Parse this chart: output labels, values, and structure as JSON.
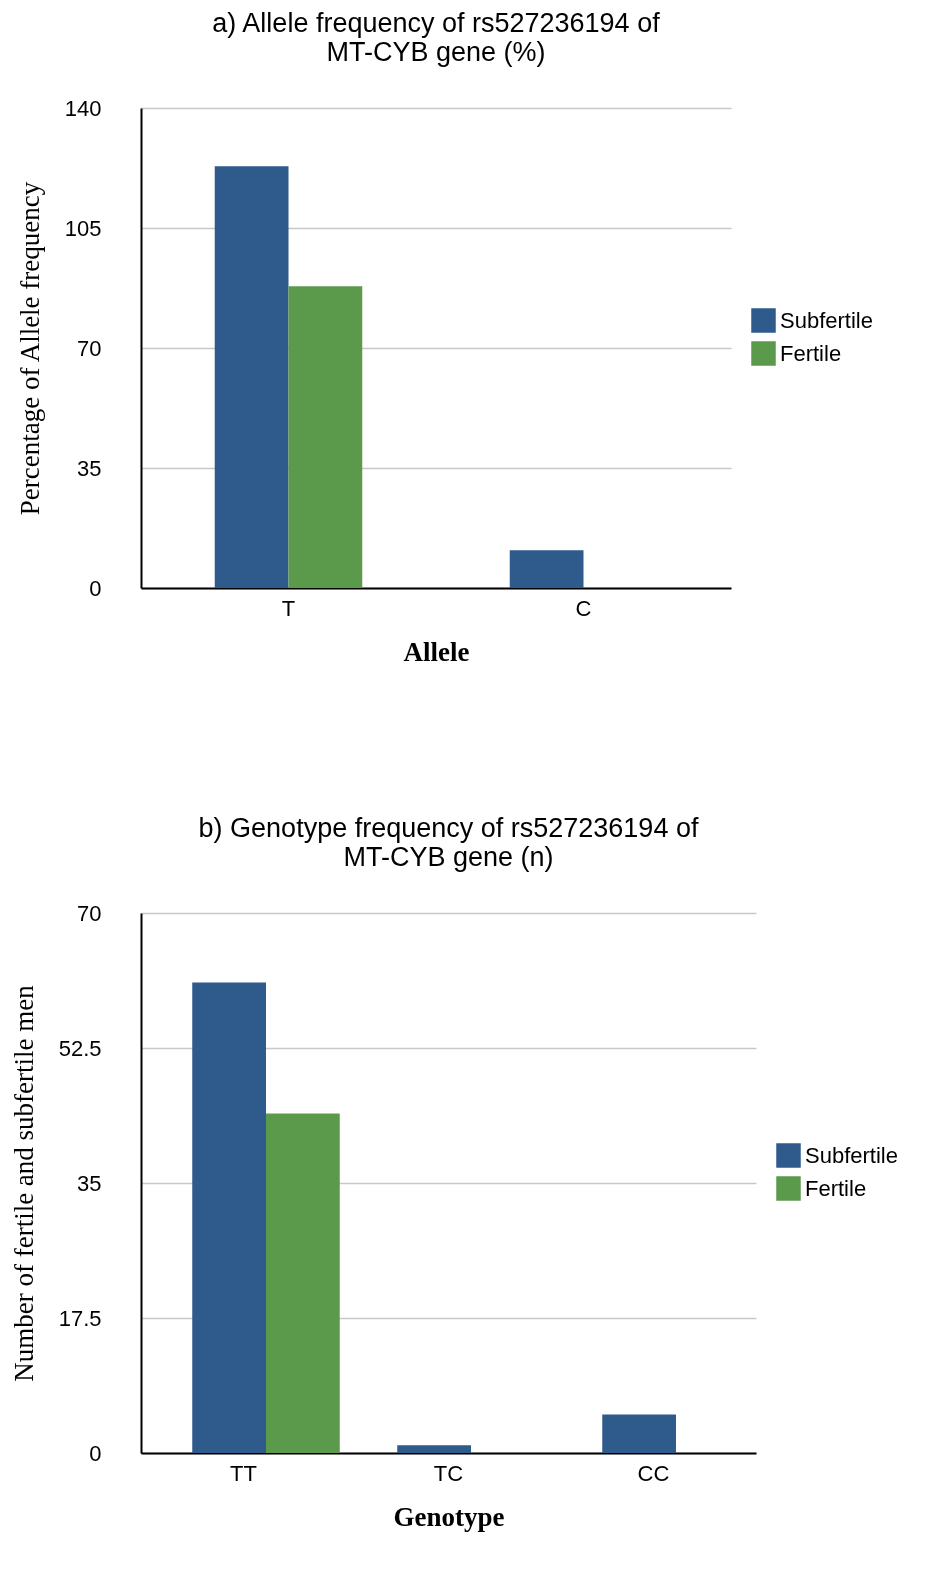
{
  "chart_data": [
    {
      "type": "bar",
      "title": "a) Allele frequency of rs527236194 of MT-CYB gene (%)",
      "xlabel": "Allele",
      "ylabel": "Percentage  of Allele frequency",
      "categories": [
        "T",
        "C"
      ],
      "series": [
        {
          "name": "Subfertile",
          "color": "#2e5a8c",
          "values": [
            123,
            11
          ]
        },
        {
          "name": "Fertile",
          "color": "#5b9a4a",
          "values": [
            88,
            0
          ]
        }
      ],
      "ylim": [
        0,
        140
      ],
      "yticks": [
        0,
        35,
        70,
        105,
        140
      ],
      "grid": "y",
      "legend": "right"
    },
    {
      "type": "bar",
      "title": "b) Genotype frequency of rs527236194 of MT-CYB gene (n)",
      "xlabel": "Genotype",
      "ylabel": "Number of fertile and subfertile men",
      "categories": [
        "TT",
        "TC",
        "CC"
      ],
      "series": [
        {
          "name": "Subfertile",
          "color": "#2e5a8c",
          "values": [
            61,
            1,
            5
          ]
        },
        {
          "name": "Fertile",
          "color": "#5b9a4a",
          "values": [
            44,
            0,
            0
          ]
        }
      ],
      "ylim": [
        0,
        70
      ],
      "yticks": [
        0,
        17.5,
        35,
        52.5,
        70
      ],
      "grid": "y",
      "legend": "right"
    }
  ]
}
